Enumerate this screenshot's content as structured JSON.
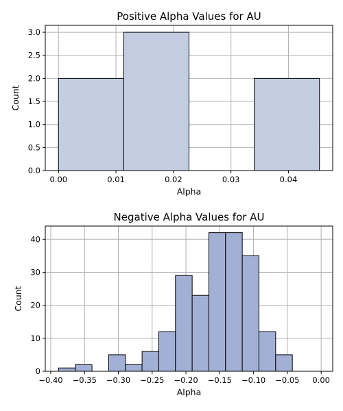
{
  "chart_data": [
    {
      "type": "bar",
      "title": "Positive Alpha Values for AU",
      "xlabel": "Alpha",
      "ylabel": "Count",
      "xlim": [
        -0.0023,
        0.0477
      ],
      "ylim": [
        0,
        3.15
      ],
      "grid": true,
      "bar_color": "#c3cde2",
      "xticks": [
        0.0,
        0.01,
        0.02,
        0.03,
        0.04
      ],
      "xtick_labels": [
        "0.00",
        "0.01",
        "0.02",
        "0.03",
        "0.04"
      ],
      "yticks": [
        0,
        0.5,
        1.0,
        1.5,
        2.0,
        2.5,
        3.0
      ],
      "ytick_labels": [
        "0.0",
        "0.5",
        "1.0",
        "1.5",
        "2.0",
        "2.5",
        "3.0"
      ],
      "bins": [
        {
          "x0": 0.0,
          "x1": 0.01135,
          "count": 2
        },
        {
          "x0": 0.01135,
          "x1": 0.0227,
          "count": 3
        },
        {
          "x0": 0.0227,
          "x1": 0.03405,
          "count": 0
        },
        {
          "x0": 0.03405,
          "x1": 0.0454,
          "count": 2
        }
      ]
    },
    {
      "type": "bar",
      "title": "Negative Alpha Values for AU",
      "xlabel": "Alpha",
      "ylabel": "Count",
      "xlim": [
        -0.4081,
        0.0171
      ],
      "ylim": [
        0,
        44
      ],
      "grid": true,
      "bar_color": "#a3b0d5",
      "xticks": [
        -0.4,
        -0.35,
        -0.3,
        -0.25,
        -0.2,
        -0.15,
        -0.1,
        -0.05,
        0.0
      ],
      "xtick_labels": [
        "−0.40",
        "−0.35",
        "−0.30",
        "−0.25",
        "−0.20",
        "−0.15",
        "−0.10",
        "−0.05",
        "0.00"
      ],
      "yticks": [
        0,
        10,
        20,
        30,
        40
      ],
      "ytick_labels": [
        "0",
        "10",
        "20",
        "30",
        "40"
      ],
      "bins": [
        {
          "x0": -0.3884,
          "x1": -0.3637,
          "count": 1
        },
        {
          "x0": -0.3637,
          "x1": -0.339,
          "count": 2
        },
        {
          "x0": -0.339,
          "x1": -0.3143,
          "count": 0
        },
        {
          "x0": -0.3143,
          "x1": -0.2896,
          "count": 5
        },
        {
          "x0": -0.2896,
          "x1": -0.2649,
          "count": 2
        },
        {
          "x0": -0.2649,
          "x1": -0.2402,
          "count": 6
        },
        {
          "x0": -0.2402,
          "x1": -0.2155,
          "count": 12
        },
        {
          "x0": -0.2155,
          "x1": -0.1908,
          "count": 29
        },
        {
          "x0": -0.1908,
          "x1": -0.1661,
          "count": 23
        },
        {
          "x0": -0.1661,
          "x1": -0.1414,
          "count": 42
        },
        {
          "x0": -0.1414,
          "x1": -0.1167,
          "count": 42
        },
        {
          "x0": -0.1167,
          "x1": -0.092,
          "count": 35
        },
        {
          "x0": -0.092,
          "x1": -0.0673,
          "count": 12
        },
        {
          "x0": -0.0673,
          "x1": -0.0426,
          "count": 5
        }
      ]
    }
  ]
}
